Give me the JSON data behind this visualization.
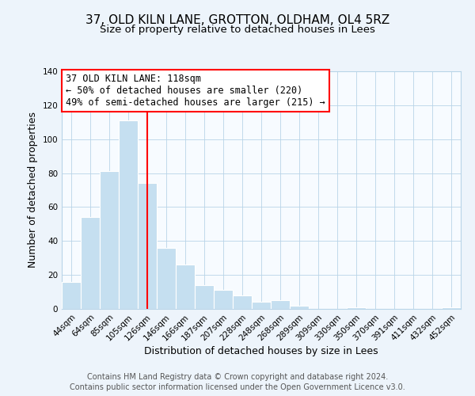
{
  "title": "37, OLD KILN LANE, GROTTON, OLDHAM, OL4 5RZ",
  "subtitle": "Size of property relative to detached houses in Lees",
  "xlabel": "Distribution of detached houses by size in Lees",
  "ylabel": "Number of detached properties",
  "bar_labels": [
    "44sqm",
    "64sqm",
    "85sqm",
    "105sqm",
    "126sqm",
    "146sqm",
    "166sqm",
    "187sqm",
    "207sqm",
    "228sqm",
    "248sqm",
    "268sqm",
    "289sqm",
    "309sqm",
    "330sqm",
    "350sqm",
    "370sqm",
    "391sqm",
    "411sqm",
    "432sqm",
    "452sqm"
  ],
  "bar_values": [
    16,
    54,
    81,
    111,
    74,
    36,
    26,
    14,
    11,
    8,
    4,
    5,
    2,
    0,
    0,
    1,
    0,
    0,
    0,
    0,
    1
  ],
  "bar_color": "#c5dff0",
  "vline_x": 4.0,
  "vline_color": "red",
  "ylim": [
    0,
    140
  ],
  "yticks": [
    0,
    20,
    40,
    60,
    80,
    100,
    120,
    140
  ],
  "annotation_line1": "37 OLD KILN LANE: 118sqm",
  "annotation_line2": "← 50% of detached houses are smaller (220)",
  "annotation_line3": "49% of semi-detached houses are larger (215) →",
  "footer_line1": "Contains HM Land Registry data © Crown copyright and database right 2024.",
  "footer_line2": "Contains public sector information licensed under the Open Government Licence v3.0.",
  "background_color": "#edf4fb",
  "plot_background_color": "#f7fbff",
  "title_fontsize": 11,
  "subtitle_fontsize": 9.5,
  "axis_label_fontsize": 9,
  "tick_fontsize": 7.5,
  "annotation_fontsize": 8.5,
  "footer_fontsize": 7
}
